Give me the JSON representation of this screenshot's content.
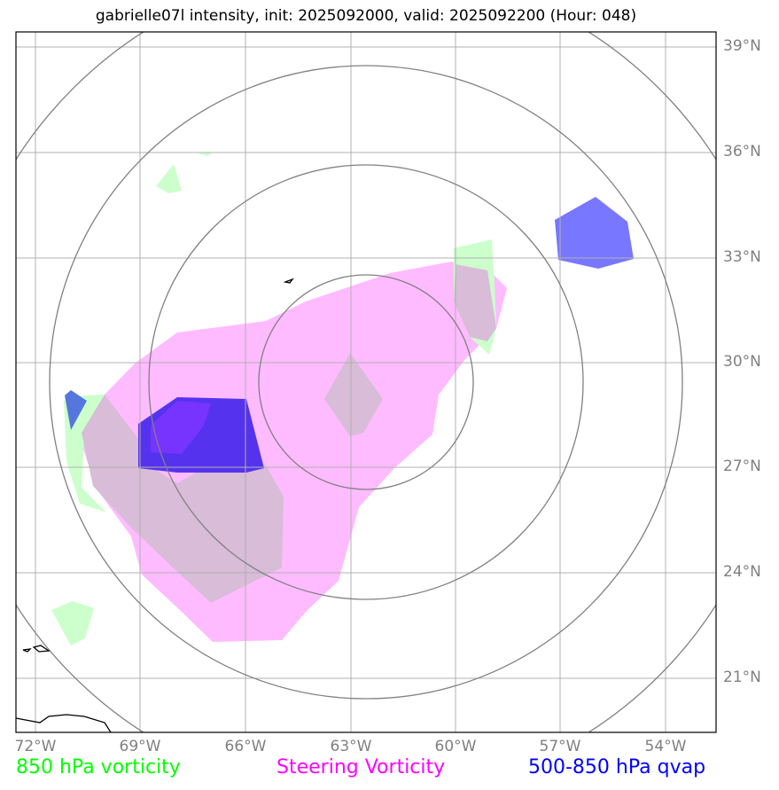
{
  "title": "gabrielle07l intensity, init: 2025092000, valid: 2025092200 (Hour: 048)",
  "lat_labels": [
    "39°N",
    "36°N",
    "33°N",
    "30°N",
    "27°N",
    "24°N",
    "21°N"
  ],
  "lon_labels": [
    "72°W",
    "69°W",
    "66°W",
    "63°W",
    "60°W",
    "57°W",
    "54°W"
  ],
  "legend": {
    "vort850": {
      "label": "850 hPa vorticity",
      "color": "#00ff00"
    },
    "steering": {
      "label": "Steering Vorticity",
      "color": "#ff00ff"
    },
    "qvap": {
      "label": "500-850 hPa qvap",
      "color": "#0000ff"
    }
  },
  "colors": {
    "vort850_fill": "#ccffcc",
    "steering_fill": "#ffbbff",
    "qvap_fill": "#3333ff",
    "grid": "#b0b0b0",
    "range_rings": "#808080",
    "coast": "#000000"
  }
}
